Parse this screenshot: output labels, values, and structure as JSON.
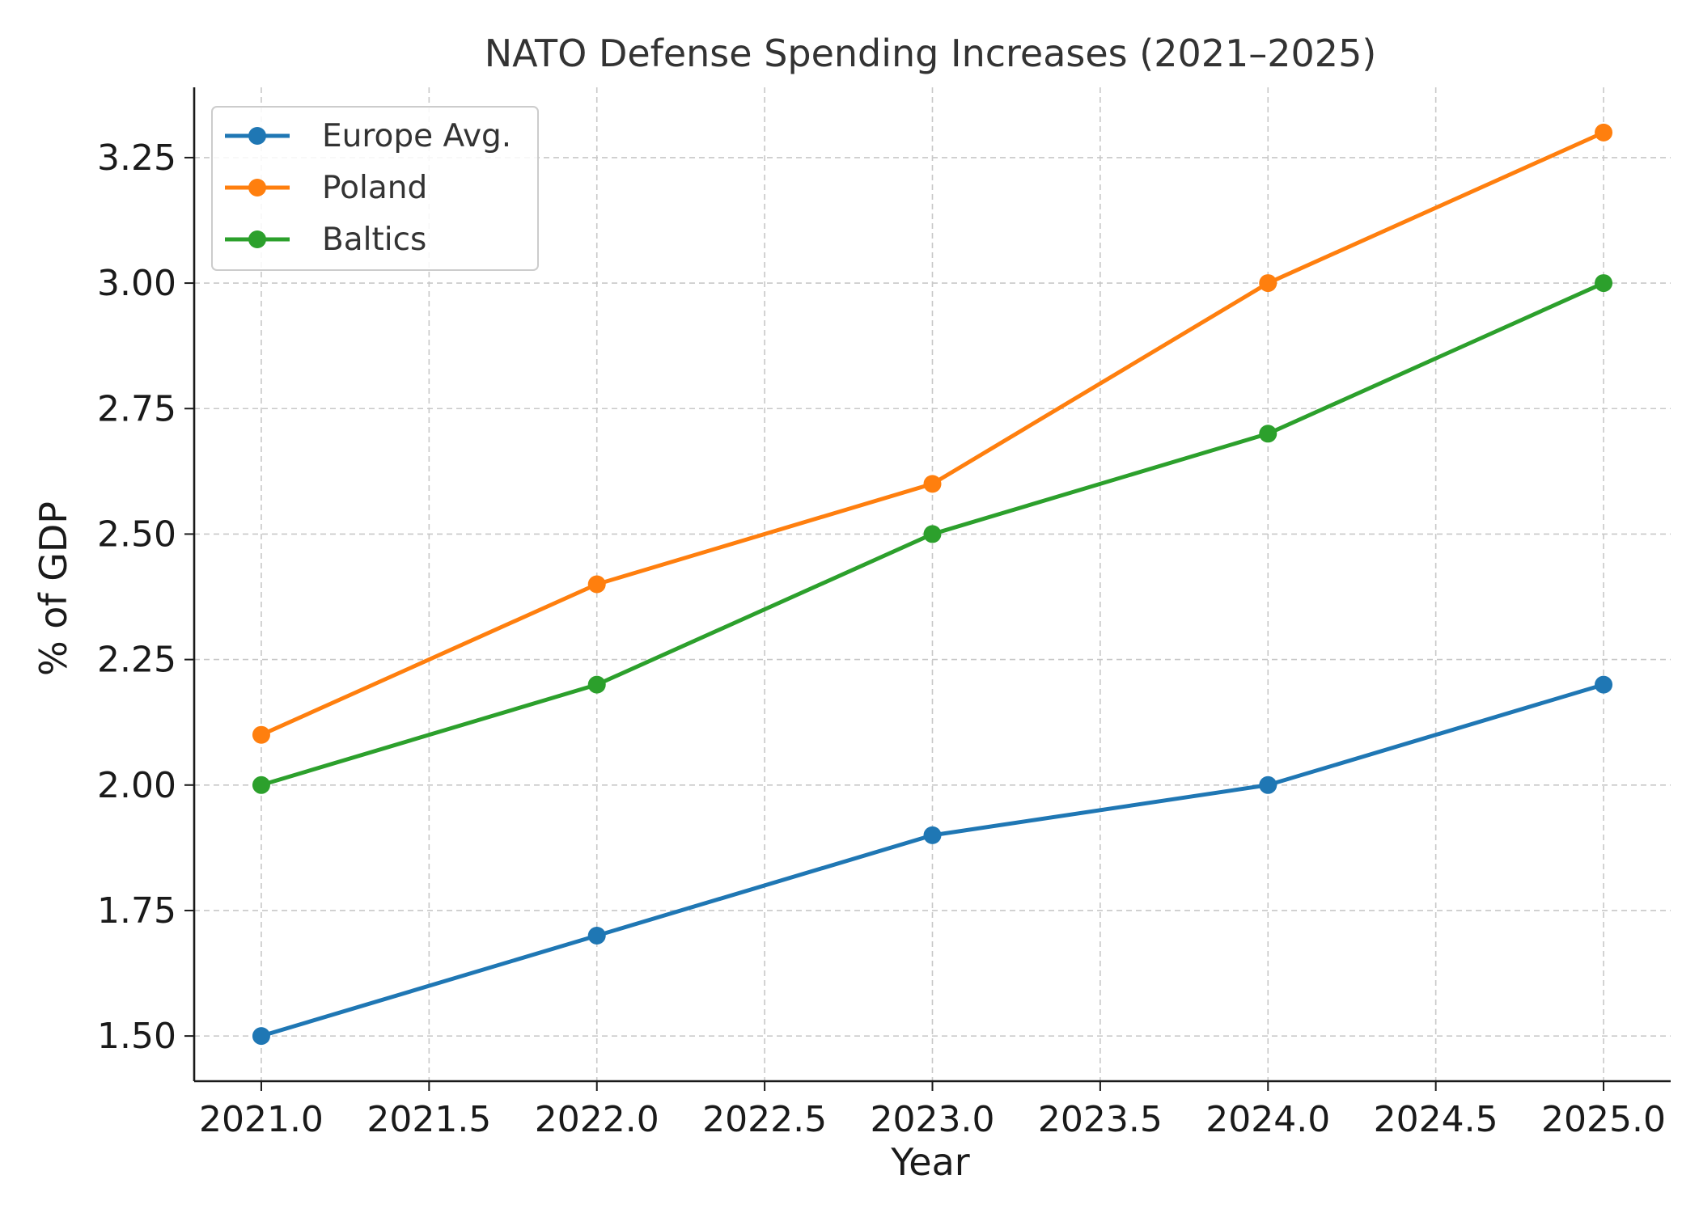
{
  "chart_data": {
    "type": "line",
    "title": "NATO Defense Spending Increases (2021–2025)",
    "xlabel": "Year",
    "ylabel": "% of GDP",
    "x": [
      2021,
      2022,
      2023,
      2024,
      2025
    ],
    "xlim": [
      2020.8,
      2025.2
    ],
    "ylim": [
      1.41,
      3.39
    ],
    "xticks": [
      2021.0,
      2021.5,
      2022.0,
      2022.5,
      2023.0,
      2023.5,
      2024.0,
      2024.5,
      2025.0
    ],
    "xtick_labels": [
      "2021.0",
      "2021.5",
      "2022.0",
      "2022.5",
      "2023.0",
      "2023.5",
      "2024.0",
      "2024.5",
      "2025.0"
    ],
    "yticks": [
      1.5,
      1.75,
      2.0,
      2.25,
      2.5,
      2.75,
      3.0,
      3.25
    ],
    "ytick_labels": [
      "1.50",
      "1.75",
      "2.00",
      "2.25",
      "2.50",
      "2.75",
      "3.00",
      "3.25"
    ],
    "grid": true,
    "legend_position": "top-left",
    "series": [
      {
        "name": "Europe Avg.",
        "color": "#1f77b4",
        "marker": "circle",
        "values": [
          1.5,
          1.7,
          1.9,
          2.0,
          2.2
        ]
      },
      {
        "name": "Poland",
        "color": "#ff7f0e",
        "marker": "circle",
        "values": [
          2.1,
          2.4,
          2.6,
          3.0,
          3.3
        ]
      },
      {
        "name": "Baltics",
        "color": "#2ca02c",
        "marker": "circle",
        "values": [
          2.0,
          2.2,
          2.5,
          2.7,
          3.0
        ]
      }
    ]
  }
}
